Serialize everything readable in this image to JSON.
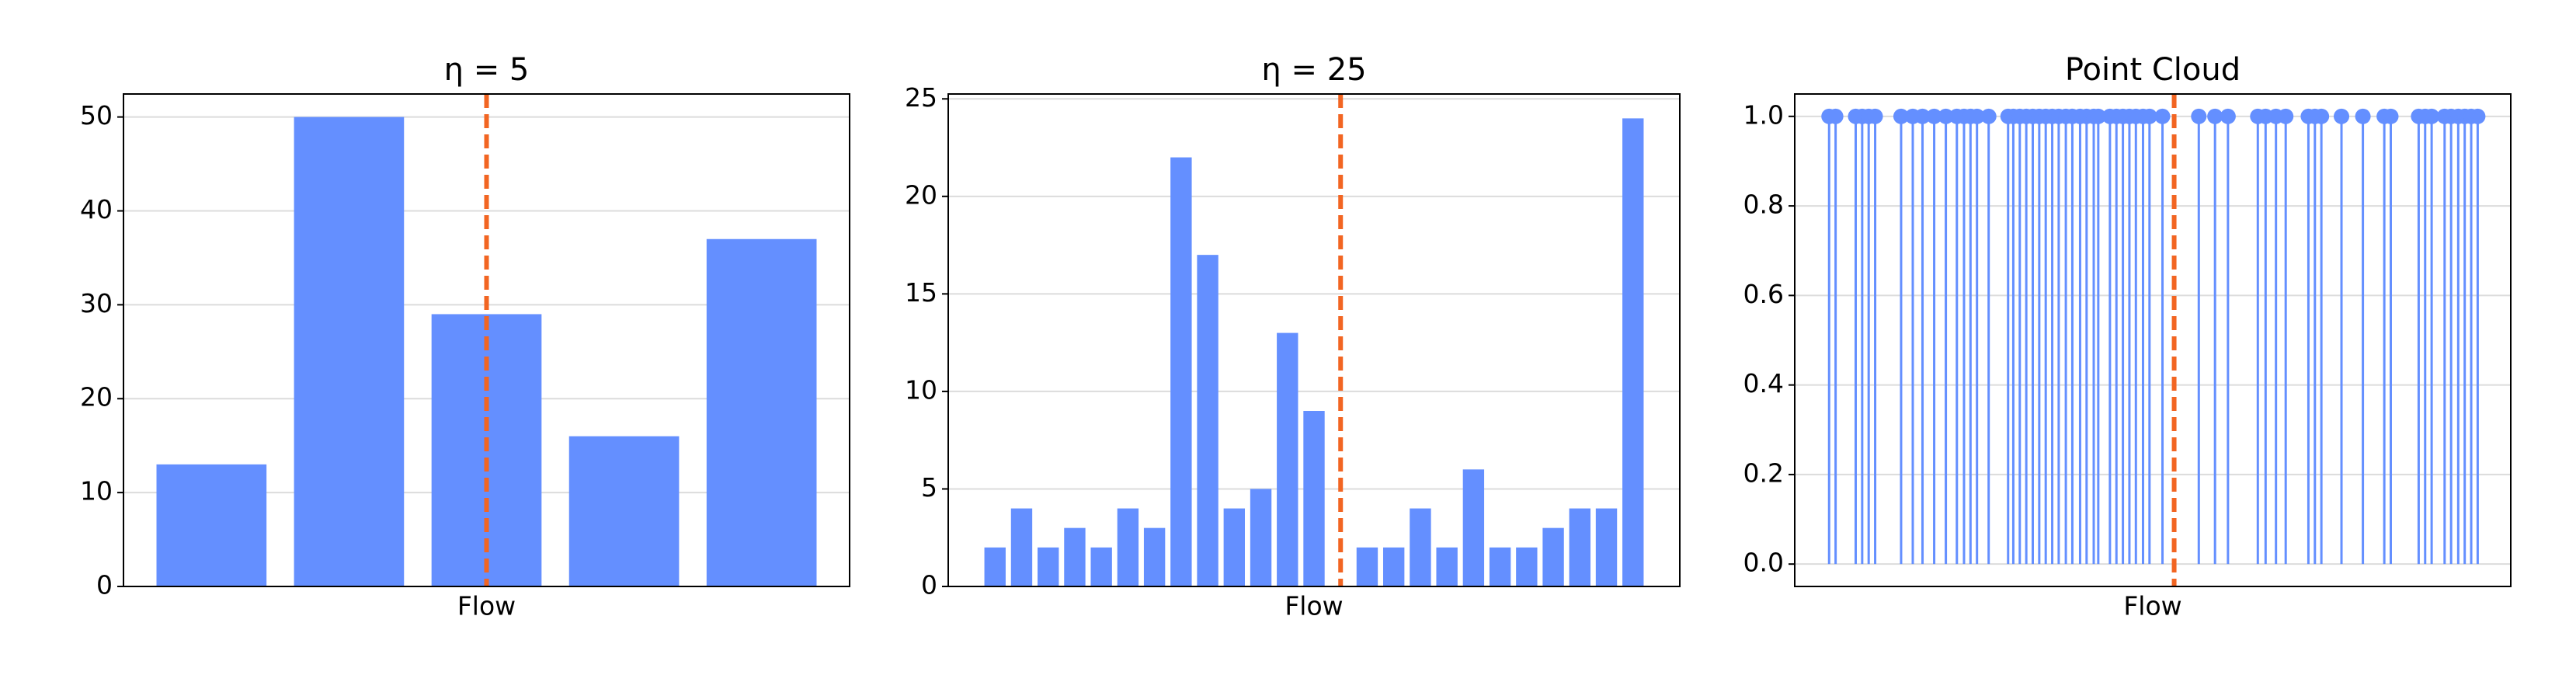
{
  "chart_data": [
    {
      "type": "bar",
      "title": "η = 5",
      "x_label": "Flow",
      "categories": [
        null,
        null,
        null,
        null,
        null
      ],
      "values": [
        13,
        50,
        29,
        16,
        37
      ],
      "color": "#648fff",
      "xlim": [
        -0.64,
        4.64
      ],
      "ylim": [
        0,
        52.45
      ],
      "yticks": [
        0,
        10,
        20,
        30,
        40,
        50
      ],
      "grid": true,
      "vline": 2,
      "vline_color": "#f26522"
    },
    {
      "type": "bar",
      "title": "η = 25",
      "x_label": "Flow",
      "categories": [
        null,
        null,
        null,
        null,
        null,
        null,
        null,
        null,
        null,
        null,
        null,
        null,
        null,
        null,
        null,
        null,
        null,
        null,
        null,
        null,
        null,
        null,
        null,
        null,
        null
      ],
      "values": [
        2,
        4,
        2,
        3,
        2,
        4,
        3,
        22,
        17,
        4,
        5,
        13,
        9,
        0,
        2,
        2,
        4,
        2,
        6,
        2,
        2,
        3,
        4,
        4,
        24
      ],
      "color": "#648fff",
      "xlim": [
        -1.76,
        25.76
      ],
      "ylim": [
        0,
        25.25
      ],
      "yticks": [
        0,
        5,
        10,
        15,
        20,
        25
      ],
      "grid": true,
      "vline": 13,
      "vline_color": "#f26522"
    },
    {
      "type": "stem",
      "title": "Point Cloud",
      "x_label": "Flow",
      "x": [
        0,
        1.0,
        4.1,
        5.1,
        6.1,
        7.1,
        11.1,
        12.9,
        14.4,
        16.2,
        18.0,
        19.7,
        20.8,
        21.8,
        22.8,
        24.6,
        27.6,
        28.4,
        29.4,
        30.4,
        31.4,
        32.4,
        33.4,
        34.4,
        35.4,
        36.5,
        37.5,
        38.7,
        39.7,
        40.8,
        41.5,
        43.3,
        44.3,
        45.3,
        46.3,
        47.3,
        48.4,
        49.4,
        51.4,
        57.0,
        59.5,
        61.5,
        66.1,
        67.3,
        68.9,
        70.4,
        73.9,
        74.9,
        75.9,
        79.0,
        82.3,
        85.6,
        86.6,
        90.9,
        91.9,
        92.9,
        94.9,
        95.9,
        97.0,
        98.0,
        99.0,
        100
      ],
      "values": [
        1,
        1,
        1,
        1,
        1,
        1,
        1,
        1,
        1,
        1,
        1,
        1,
        1,
        1,
        1,
        1,
        1,
        1,
        1,
        1,
        1,
        1,
        1,
        1,
        1,
        1,
        1,
        1,
        1,
        1,
        1,
        1,
        1,
        1,
        1,
        1,
        1,
        1,
        1,
        1,
        1,
        1,
        1,
        1,
        1,
        1,
        1,
        1,
        1,
        1,
        1,
        1,
        1,
        1,
        1,
        1,
        1,
        1,
        1,
        1,
        1,
        1
      ],
      "color": "#648fff",
      "xlim": [
        -5.3,
        105.1
      ],
      "ylim": [
        -0.05,
        1.05
      ],
      "yticks": [
        {
          "value": 0,
          "label": "0.0"
        },
        {
          "value": 0.2,
          "label": "0.2"
        },
        {
          "value": 0.4,
          "label": "0.4"
        },
        {
          "value": 0.6,
          "label": "0.6"
        },
        {
          "value": 0.8,
          "label": "0.8"
        },
        {
          "value": 1,
          "label": "1.0"
        }
      ],
      "grid": true,
      "vline": 53.2,
      "vline_color": "#f26522"
    }
  ]
}
